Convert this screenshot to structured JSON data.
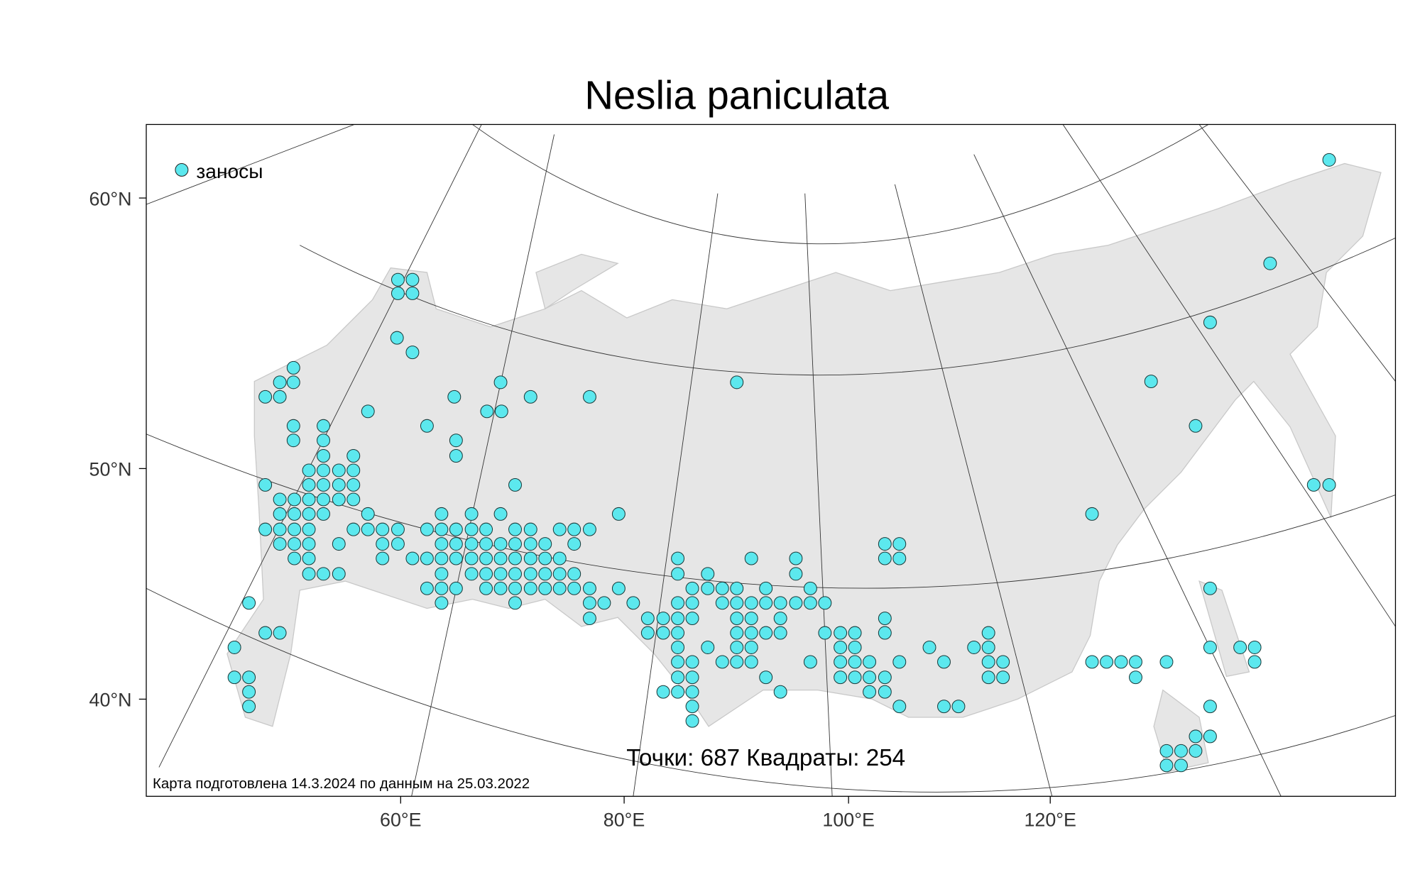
{
  "title": "Neslia paniculata",
  "legend": {
    "label": "заносы"
  },
  "axes": {
    "y_labels": [
      "60°N",
      "50°N",
      "40°N"
    ],
    "x_labels": [
      "60°E",
      "80°E",
      "100°E",
      "120°E"
    ]
  },
  "summary": "Точки: 687 Квадраты: 254",
  "credit": "Карта подготовлена 14.3.2024 по данным на 25.03.2022"
}
